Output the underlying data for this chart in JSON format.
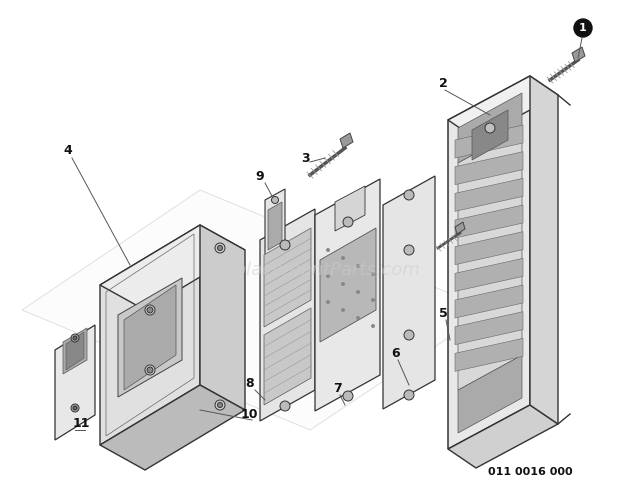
{
  "background_color": "#ffffff",
  "watermark_text": "eReplacementParts.com",
  "watermark_color": "#cccccc",
  "watermark_fontsize": 13,
  "part_number_text": "011 0016 000",
  "part_number_fontsize": 8,
  "label_circle_color": "#111111",
  "label_text_color": "#ffffff",
  "label_font_size": 7,
  "line_color": "#333333",
  "outline_color": "#333333",
  "fill_light": "#f0f0f0",
  "fill_mid": "#d8d8d8",
  "fill_dark": "#b8b8b8"
}
